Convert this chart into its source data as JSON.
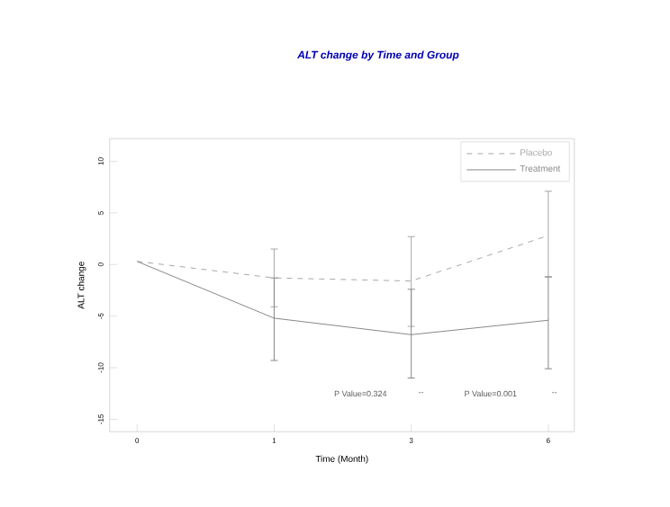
{
  "chart_data": {
    "type": "line",
    "title": "ALT change by Time and Group",
    "xlabel": "Time (Month)",
    "ylabel": "ALT change",
    "categories": [
      "0",
      "1",
      "3",
      "6"
    ],
    "series": [
      {
        "name": "Placebo",
        "color": "#a8a8a8",
        "line_style": "dashed",
        "values": [
          0.3,
          -1.3,
          -1.6,
          2.8
        ],
        "errors": [
          null,
          [
            -4.1,
            1.5
          ],
          [
            -6.0,
            2.7
          ],
          [
            -1.2,
            7.1
          ]
        ]
      },
      {
        "name": "Treatment",
        "color": "#888888",
        "line_style": "solid",
        "values": [
          0.3,
          -5.2,
          -6.8,
          -5.4
        ],
        "errors": [
          null,
          [
            -9.3,
            -1.3
          ],
          [
            -11.0,
            -2.4
          ],
          [
            -10.1,
            -1.2
          ]
        ]
      }
    ],
    "ylim": [
      -16.2,
      12.2
    ],
    "yticks": [
      -15,
      -10,
      -5,
      0,
      5,
      10
    ],
    "legend": "top right",
    "annotations": [
      "P Value=0.324",
      "--",
      "P Value=0.001",
      "--"
    ]
  }
}
